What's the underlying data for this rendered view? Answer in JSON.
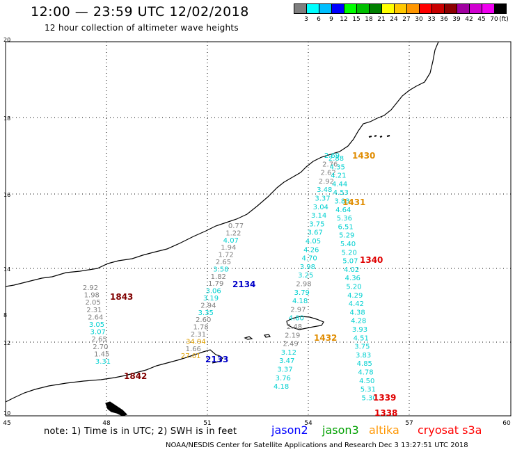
{
  "header": {
    "title": "12:00 — 23:59 UTC 12/02/2018",
    "subtitle": "12 hour collection of altimeter wave heights"
  },
  "scale": {
    "colors": [
      "#7f7f7f",
      "#00ffff",
      "#00bfff",
      "#0000ff",
      "#00ff00",
      "#00c000",
      "#008000",
      "#ffff00",
      "#ffc800",
      "#ff9600",
      "#ff0000",
      "#c80000",
      "#8c0000",
      "#a000a0",
      "#d000d0",
      "#f000f0",
      "#000000"
    ],
    "labels": [
      "3",
      "6",
      "9",
      "12",
      "15",
      "18",
      "21",
      "24",
      "27",
      "30",
      "33",
      "36",
      "39",
      "42",
      "45",
      "70",
      "(ft)"
    ]
  },
  "axes": {
    "lon_ticks": [
      "45",
      "48",
      "51",
      "54",
      "57",
      "60"
    ],
    "lat_ticks": [
      "10",
      "12",
      "14",
      "16",
      "18",
      "20"
    ],
    "lat_left_marker": "8"
  },
  "tracks": [
    {
      "name": "1843",
      "color": "#800000",
      "values": [
        {
          "v": "2.92",
          "c": "#808080"
        },
        {
          "v": "1.98",
          "c": "#808080"
        },
        {
          "v": "2.05",
          "c": "#808080"
        },
        {
          "v": "2.31",
          "c": "#808080"
        },
        {
          "v": "2.64",
          "c": "#808080"
        },
        {
          "v": "3.05",
          "c": "#00d0d0"
        },
        {
          "v": "3.07",
          "c": "#00d0d0"
        },
        {
          "v": "2.65",
          "c": "#808080"
        },
        {
          "v": "2.70",
          "c": "#808080"
        },
        {
          "v": "1.45",
          "c": "#808080"
        },
        {
          "v": "3.31",
          "c": "#00d0d0"
        }
      ]
    },
    {
      "name": "2134",
      "color": "#0000c8",
      "values": [
        {
          "v": "0.77",
          "c": "#808080"
        },
        {
          "v": "1.22",
          "c": "#808080"
        },
        {
          "v": "4.07",
          "c": "#00d0d0"
        },
        {
          "v": "1.94",
          "c": "#808080"
        },
        {
          "v": "1.72",
          "c": "#808080"
        },
        {
          "v": "2.65",
          "c": "#808080"
        },
        {
          "v": "3.58",
          "c": "#00d0d0"
        },
        {
          "v": "1.82",
          "c": "#808080"
        },
        {
          "v": "1.79",
          "c": "#808080"
        },
        {
          "v": "3.06",
          "c": "#00d0d0"
        },
        {
          "v": "3.19",
          "c": "#00d0d0"
        },
        {
          "v": "2.94",
          "c": "#808080"
        },
        {
          "v": "3.35",
          "c": "#00d0d0"
        },
        {
          "v": "2.60",
          "c": "#808080"
        },
        {
          "v": "1.78",
          "c": "#808080"
        },
        {
          "v": "2.31",
          "c": "#808080"
        },
        {
          "v": "34.94",
          "c": "#e0a000"
        },
        {
          "v": "1.66",
          "c": "#808080"
        },
        {
          "v": "27.01",
          "c": "#e0a000"
        }
      ]
    },
    {
      "name": "2133",
      "color": "#0000c8"
    },
    {
      "name": "1842",
      "color": "#800000"
    },
    {
      "name": "1430",
      "color": "#e08c00",
      "values": [
        {
          "v": "2.69",
          "c": "#00d0d0"
        },
        {
          "v": "2.76",
          "c": "#808080"
        },
        {
          "v": "2.62",
          "c": "#808080"
        },
        {
          "v": "2.92",
          "c": "#808080"
        },
        {
          "v": "3.48",
          "c": "#00d0d0"
        },
        {
          "v": "3.37",
          "c": "#00d0d0"
        },
        {
          "v": "3.04",
          "c": "#00d0d0"
        },
        {
          "v": "3.14",
          "c": "#00d0d0"
        },
        {
          "v": "3.75",
          "c": "#00d0d0"
        },
        {
          "v": "3.67",
          "c": "#00d0d0"
        },
        {
          "v": "4.05",
          "c": "#00d0d0"
        },
        {
          "v": "4.26",
          "c": "#00d0d0"
        },
        {
          "v": "4.70",
          "c": "#00d0d0"
        },
        {
          "v": "3.98",
          "c": "#00d0d0"
        },
        {
          "v": "3.25",
          "c": "#00d0d0"
        },
        {
          "v": "2.98",
          "c": "#808080"
        },
        {
          "v": "3.79",
          "c": "#00d0d0"
        },
        {
          "v": "4.18",
          "c": "#00d0d0"
        },
        {
          "v": "2.97",
          "c": "#808080"
        },
        {
          "v": "4.80",
          "c": "#00d0d0"
        },
        {
          "v": "2.48",
          "c": "#808080"
        },
        {
          "v": "2.19",
          "c": "#808080"
        },
        {
          "v": "2.49",
          "c": "#808080"
        },
        {
          "v": "3.12",
          "c": "#00d0d0"
        },
        {
          "v": "3.47",
          "c": "#00d0d0"
        },
        {
          "v": "3.37",
          "c": "#00d0d0"
        },
        {
          "v": "3.76",
          "c": "#00d0d0"
        },
        {
          "v": "4.18",
          "c": "#00d0d0"
        }
      ]
    },
    {
      "name": "1431",
      "color": "#e08c00",
      "values": [
        {
          "v": "2.88",
          "c": "#00d0d0"
        },
        {
          "v": "4.35",
          "c": "#00d0d0"
        },
        {
          "v": "4.21",
          "c": "#00d0d0"
        },
        {
          "v": "4.44",
          "c": "#00d0d0"
        },
        {
          "v": "4.53",
          "c": "#00d0d0"
        },
        {
          "v": "3.83",
          "c": "#00d0d0"
        },
        {
          "v": "4.64",
          "c": "#00d0d0"
        },
        {
          "v": "5.36",
          "c": "#00d0d0"
        },
        {
          "v": "6.51",
          "c": "#00d0d0"
        },
        {
          "v": "5.29",
          "c": "#00d0d0"
        },
        {
          "v": "5.40",
          "c": "#00d0d0"
        },
        {
          "v": "5.20",
          "c": "#00d0d0"
        },
        {
          "v": "5.07",
          "c": "#00d0d0"
        },
        {
          "v": "4.02",
          "c": "#00d0d0"
        },
        {
          "v": "4.36",
          "c": "#00d0d0"
        },
        {
          "v": "5.20",
          "c": "#00d0d0"
        },
        {
          "v": "4.29",
          "c": "#00d0d0"
        },
        {
          "v": "4.42",
          "c": "#00d0d0"
        },
        {
          "v": "4.38",
          "c": "#00d0d0"
        },
        {
          "v": "4.28",
          "c": "#00d0d0"
        },
        {
          "v": "3.93",
          "c": "#00d0d0"
        },
        {
          "v": "4.51",
          "c": "#00d0d0"
        },
        {
          "v": "3.75",
          "c": "#00d0d0"
        },
        {
          "v": "3.83",
          "c": "#00d0d0"
        },
        {
          "v": "4.85",
          "c": "#00d0d0"
        },
        {
          "v": "4.78",
          "c": "#00d0d0"
        },
        {
          "v": "4.50",
          "c": "#00d0d0"
        },
        {
          "v": "5.31",
          "c": "#00d0d0"
        },
        {
          "v": "5.30",
          "c": "#00d0d0"
        }
      ]
    },
    {
      "name": "1432",
      "color": "#e08c00"
    },
    {
      "name": "1340",
      "color": "#e00000"
    },
    {
      "name": "1339",
      "color": "#e00000"
    },
    {
      "name": "1338",
      "color": "#e00000"
    }
  ],
  "footer": {
    "note": "note: 1) Time is in UTC; 2) SWH is in feet",
    "legend": [
      {
        "name": "jason2",
        "color": "#0000ff"
      },
      {
        "name": "jason3",
        "color": "#00a000"
      },
      {
        "name": "altika",
        "color": "#ff9600"
      },
      {
        "name": "cryosat s3a",
        "color": "#ff0000"
      }
    ],
    "credit": "NOAA/NESDIS Center for Satellite Applications and Research    Dec  3 13:27:51 UTC 2018"
  }
}
